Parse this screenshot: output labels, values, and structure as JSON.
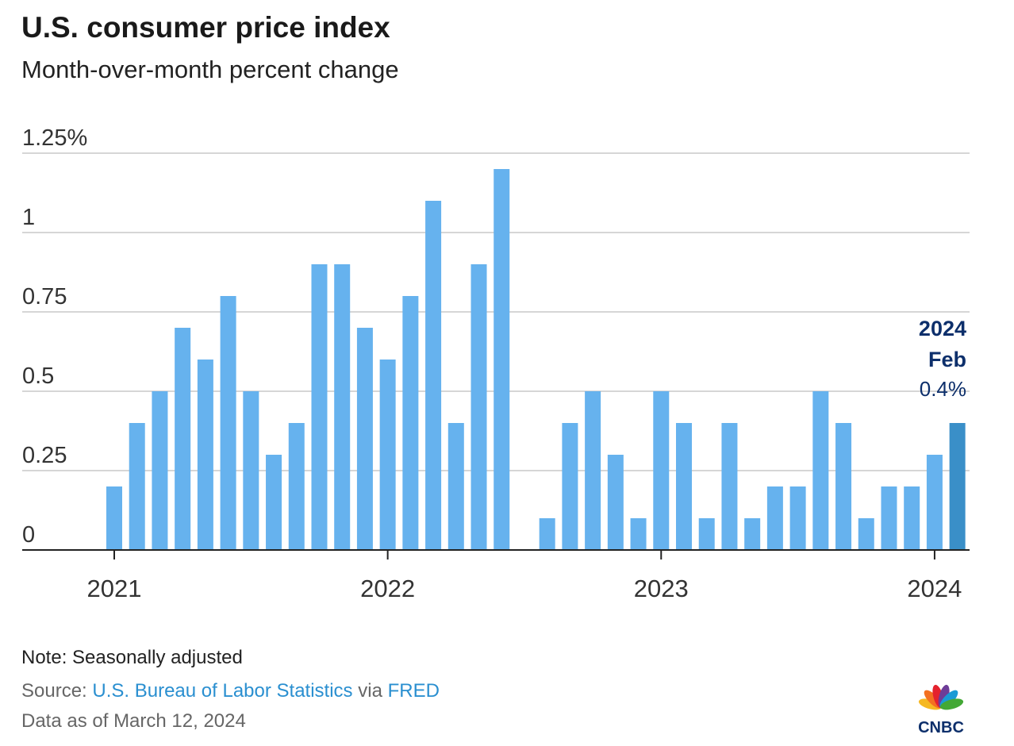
{
  "title": "U.S. consumer price index",
  "subtitle": "Month-over-month percent change",
  "chart_data": {
    "type": "bar",
    "title": "U.S. consumer price index",
    "subtitle": "Month-over-month percent change",
    "xlabel": "",
    "ylabel": "",
    "ylim": [
      0,
      1.25
    ],
    "y_ticks": [
      0,
      0.25,
      0.5,
      0.75,
      1,
      1.25
    ],
    "y_tick_labels": [
      "0",
      "0.25",
      "0.5",
      "0.75",
      "1",
      "1.25%"
    ],
    "x_tick_labels": [
      "2021",
      "2022",
      "2023",
      "2024"
    ],
    "grid": true,
    "categories": [
      "2021-01",
      "2021-02",
      "2021-03",
      "2021-04",
      "2021-05",
      "2021-06",
      "2021-07",
      "2021-08",
      "2021-09",
      "2021-10",
      "2021-11",
      "2021-12",
      "2022-01",
      "2022-02",
      "2022-03",
      "2022-04",
      "2022-05",
      "2022-06",
      "2022-07",
      "2022-08",
      "2022-09",
      "2022-10",
      "2022-11",
      "2022-12",
      "2023-01",
      "2023-02",
      "2023-03",
      "2023-04",
      "2023-05",
      "2023-06",
      "2023-07",
      "2023-08",
      "2023-09",
      "2023-10",
      "2023-11",
      "2023-12",
      "2024-01",
      "2024-02"
    ],
    "values": [
      0.2,
      0.4,
      0.5,
      0.7,
      0.6,
      0.8,
      0.5,
      0.3,
      0.4,
      0.9,
      0.9,
      0.7,
      0.6,
      0.8,
      1.1,
      0.4,
      0.9,
      1.2,
      0.0,
      0.1,
      0.4,
      0.5,
      0.3,
      0.1,
      0.5,
      0.4,
      0.1,
      0.4,
      0.1,
      0.2,
      0.2,
      0.5,
      0.4,
      0.1,
      0.2,
      0.2,
      0.3,
      0.4
    ],
    "bar_color": "#66b2ee",
    "highlight_color": "#3a8fc8",
    "annotation": {
      "year": "2024",
      "month": "Feb",
      "value": "0.4%"
    }
  },
  "footer": {
    "note": "Note: Seasonally adjusted",
    "source_prefix": "Source: ",
    "source_link": "U.S. Bureau of Labor Statistics",
    "source_via": " via ",
    "source_link2": "FRED",
    "data_as_of": "Data as of March 12, 2024"
  },
  "logo": {
    "text": "CNBC"
  }
}
